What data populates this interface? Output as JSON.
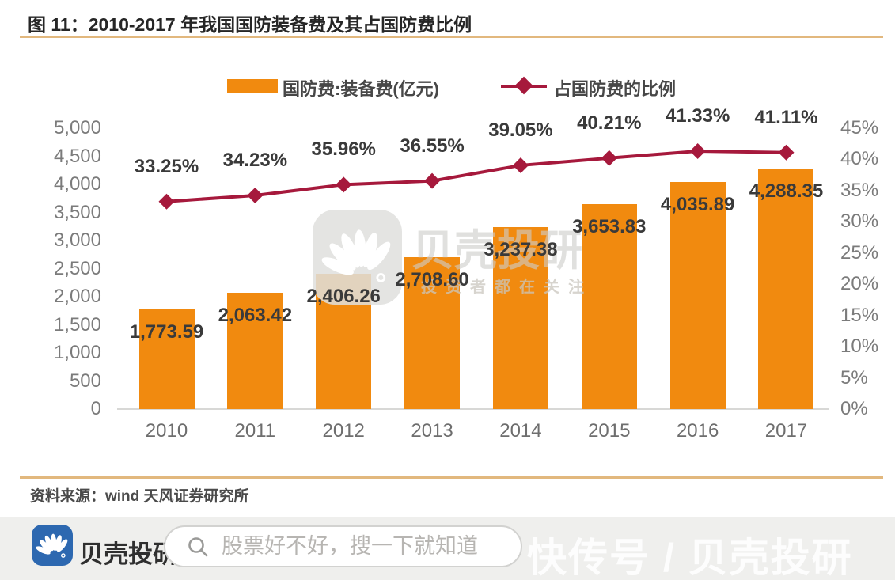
{
  "figure": {
    "label": "图 11：",
    "title": "2010-2017 年我国国防装备费及其占国防费比例"
  },
  "legend": [
    {
      "label": "国防费:装备费(亿元)",
      "type": "bar",
      "color": "#F18A0F"
    },
    {
      "label": "占国防费的比例",
      "type": "line",
      "color": "#A6193C"
    }
  ],
  "chart_data": {
    "type": "bar+line",
    "title": "2010-2017 年我国国防装备费及其占国防费比例",
    "categories": [
      "2010",
      "2011",
      "2012",
      "2013",
      "2014",
      "2015",
      "2016",
      "2017"
    ],
    "series": [
      {
        "name": "国防费:装备费(亿元)",
        "type": "bar",
        "axis": "left",
        "values": [
          1773.59,
          2063.42,
          2406.26,
          2708.6,
          3237.38,
          3653.83,
          4035.89,
          4288.35
        ],
        "labels": [
          "1,773.59",
          "2,063.42",
          "2,406.26",
          "2,708.60",
          "3,237.38",
          "3,653.83",
          "4,035.89",
          "4,288.35"
        ]
      },
      {
        "name": "占国防费的比例",
        "type": "line",
        "axis": "right",
        "values": [
          33.25,
          34.23,
          35.96,
          36.55,
          39.05,
          40.21,
          41.33,
          41.11
        ],
        "labels": [
          "33.25%",
          "34.23%",
          "35.96%",
          "36.55%",
          "39.05%",
          "40.21%",
          "41.33%",
          "41.11%"
        ]
      }
    ],
    "left_axis": {
      "min": 0,
      "max": 5000,
      "step": 500,
      "tick_labels": [
        "5,000",
        "4,500",
        "4,000",
        "3,500",
        "3,000",
        "2,500",
        "2,000",
        "1,500",
        "1,000",
        "500",
        "0"
      ]
    },
    "right_axis": {
      "min": 0,
      "max": 45,
      "step": 5,
      "tick_labels": [
        "45%",
        "40%",
        "35%",
        "30%",
        "25%",
        "20%",
        "15%",
        "10%",
        "5%",
        "0%"
      ]
    },
    "grid": "off",
    "legend_position": "top"
  },
  "source": {
    "text": "资料来源：wind 天风证券研究所"
  },
  "watermark_center": {
    "brand": "贝壳投研",
    "slogan": "投资者都在关注"
  },
  "footer": {
    "brand": "贝壳投研",
    "search_placeholder": "股票好不好，搜一下就知道",
    "watermark": "快传号 / 贝壳投研"
  },
  "colors": {
    "bar": "#F18A0F",
    "line": "#A6193C",
    "rule": "#E2B87E",
    "logo_blue": "#2D68B0",
    "footer_bg": "#EFEFED"
  }
}
